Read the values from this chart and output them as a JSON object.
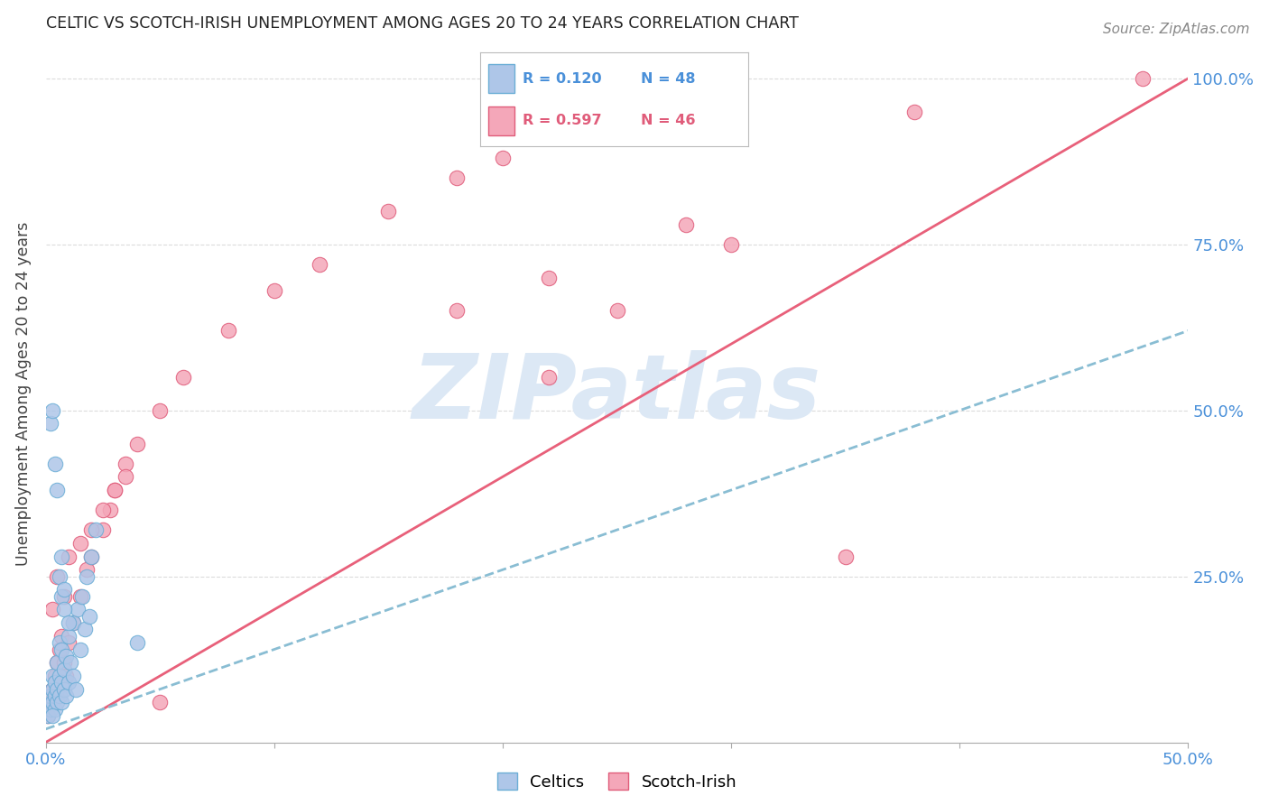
{
  "title": "CELTIC VS SCOTCH-IRISH UNEMPLOYMENT AMONG AGES 20 TO 24 YEARS CORRELATION CHART",
  "source": "Source: ZipAtlas.com",
  "ylabel": "Unemployment Among Ages 20 to 24 years",
  "xlim": [
    0.0,
    0.5
  ],
  "ylim": [
    0.0,
    1.05
  ],
  "xtick_vals": [
    0.0,
    0.1,
    0.2,
    0.3,
    0.4,
    0.5
  ],
  "xtick_labels_show": [
    "0.0%",
    "",
    "",
    "",
    "",
    "50.0%"
  ],
  "ytick_vals": [
    0.25,
    0.5,
    0.75,
    1.0
  ],
  "ytick_labels": [
    "25.0%",
    "50.0%",
    "75.0%",
    "100.0%"
  ],
  "celtics_color": "#aec6e8",
  "celtics_edge": "#6baed6",
  "scotch_color": "#f4a7b9",
  "scotch_edge": "#e05c7a",
  "celtics_line_color": "#89bdd3",
  "scotch_line_color": "#e8607a",
  "grid_color": "#cccccc",
  "bg_color": "#ffffff",
  "watermark": "ZIPatlas",
  "watermark_color": "#dce8f5",
  "legend_r_celtics_text": "R = 0.120",
  "legend_n_celtics_text": "N = 48",
  "legend_r_scotch_text": "R = 0.597",
  "legend_n_scotch_text": "N = 46",
  "celtics_line_y0": 0.02,
  "celtics_line_y1": 0.62,
  "scotch_line_y0": 0.0,
  "scotch_line_y1": 1.0,
  "celtics_x": [
    0.001,
    0.002,
    0.002,
    0.003,
    0.003,
    0.003,
    0.004,
    0.004,
    0.004,
    0.005,
    0.005,
    0.005,
    0.006,
    0.006,
    0.006,
    0.007,
    0.007,
    0.007,
    0.008,
    0.008,
    0.009,
    0.009,
    0.01,
    0.01,
    0.011,
    0.012,
    0.012,
    0.013,
    0.014,
    0.015,
    0.016,
    0.017,
    0.018,
    0.019,
    0.02,
    0.022,
    0.002,
    0.003,
    0.004,
    0.005,
    0.006,
    0.007,
    0.007,
    0.008,
    0.008,
    0.01,
    0.04,
    0.003
  ],
  "celtics_y": [
    0.04,
    0.05,
    0.07,
    0.06,
    0.08,
    0.1,
    0.05,
    0.07,
    0.09,
    0.06,
    0.08,
    0.12,
    0.07,
    0.1,
    0.15,
    0.06,
    0.09,
    0.14,
    0.08,
    0.11,
    0.07,
    0.13,
    0.09,
    0.16,
    0.12,
    0.1,
    0.18,
    0.08,
    0.2,
    0.14,
    0.22,
    0.17,
    0.25,
    0.19,
    0.28,
    0.32,
    0.48,
    0.5,
    0.42,
    0.38,
    0.25,
    0.28,
    0.22,
    0.2,
    0.23,
    0.18,
    0.15,
    0.04
  ],
  "scotch_x": [
    0.001,
    0.002,
    0.003,
    0.004,
    0.005,
    0.006,
    0.007,
    0.008,
    0.009,
    0.01,
    0.012,
    0.015,
    0.018,
    0.02,
    0.025,
    0.028,
    0.03,
    0.035,
    0.04,
    0.05,
    0.06,
    0.08,
    0.1,
    0.12,
    0.15,
    0.18,
    0.2,
    0.22,
    0.25,
    0.3,
    0.003,
    0.005,
    0.008,
    0.01,
    0.015,
    0.02,
    0.025,
    0.03,
    0.035,
    0.18,
    0.22,
    0.48,
    0.38,
    0.28,
    0.35,
    0.05
  ],
  "scotch_y": [
    0.04,
    0.06,
    0.08,
    0.1,
    0.12,
    0.14,
    0.16,
    0.12,
    0.1,
    0.15,
    0.18,
    0.22,
    0.26,
    0.28,
    0.32,
    0.35,
    0.38,
    0.42,
    0.45,
    0.5,
    0.55,
    0.62,
    0.68,
    0.72,
    0.8,
    0.85,
    0.88,
    0.55,
    0.65,
    0.75,
    0.2,
    0.25,
    0.22,
    0.28,
    0.3,
    0.32,
    0.35,
    0.38,
    0.4,
    0.65,
    0.7,
    1.0,
    0.95,
    0.78,
    0.28,
    0.06
  ]
}
